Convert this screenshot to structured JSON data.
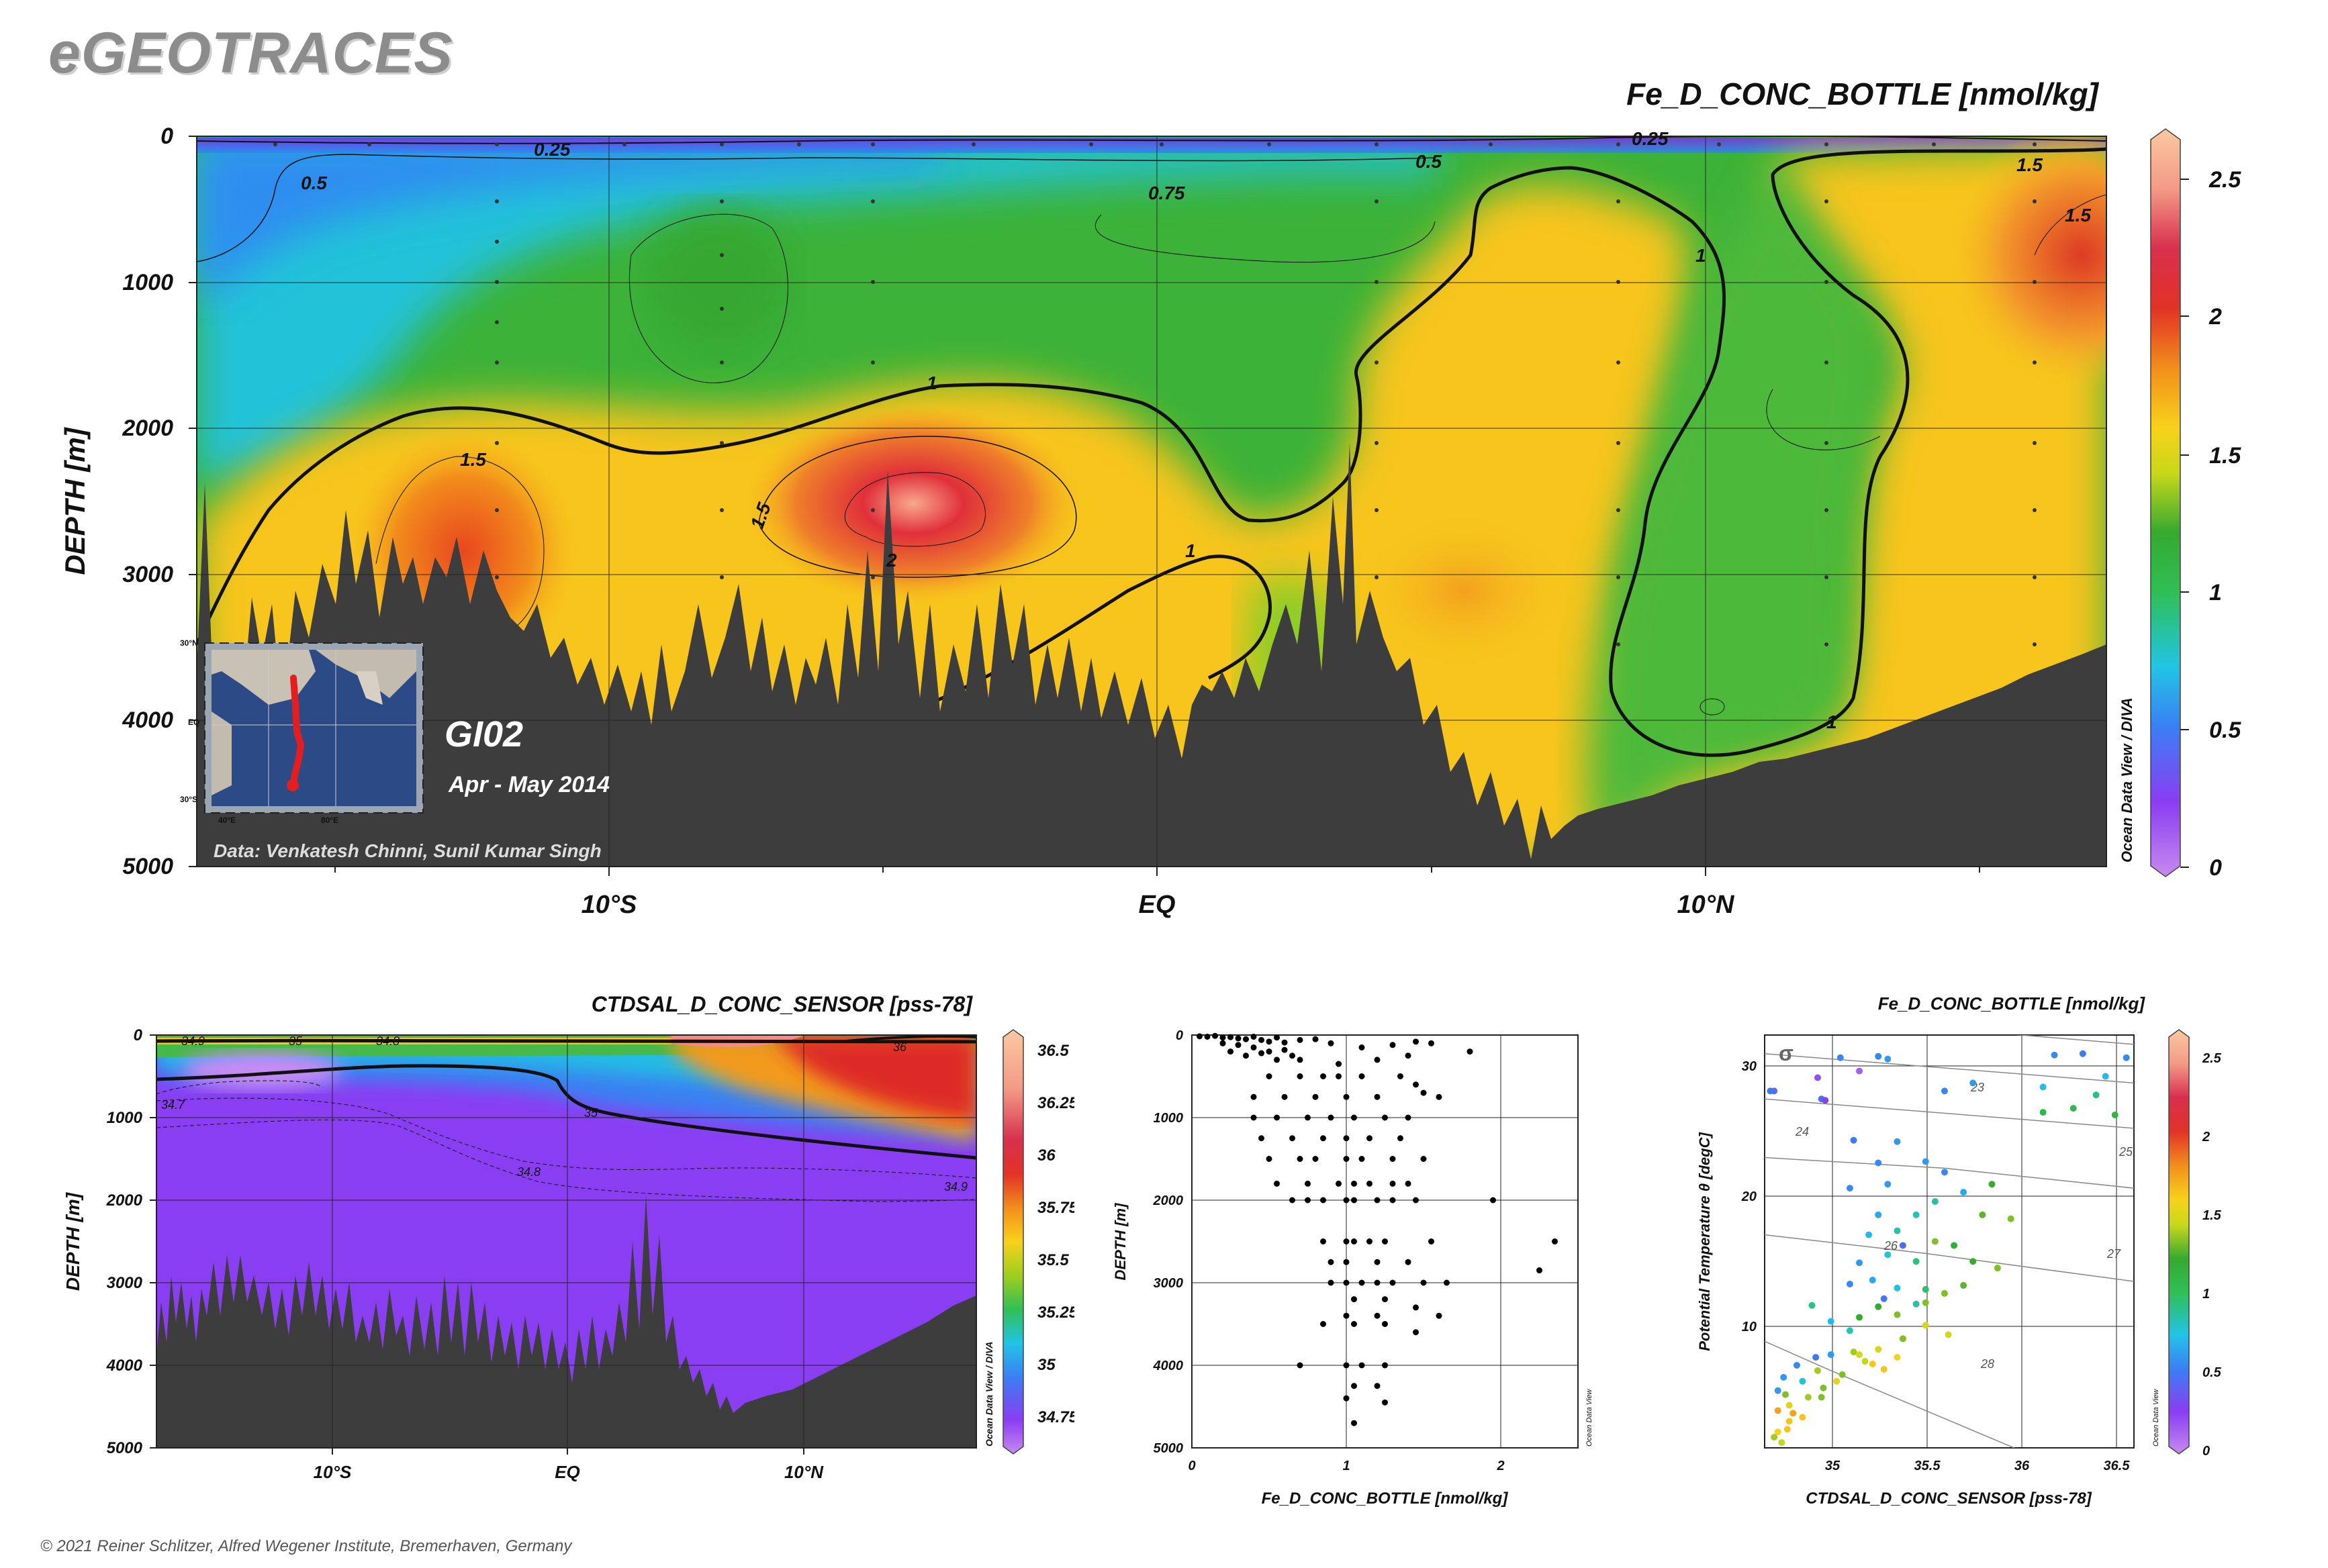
{
  "brand": "eGEOTRACES",
  "copyright": "© 2021 Reiner Schlitzer, Alfred Wegener Institute, Bremerhaven, Germany",
  "main": {
    "title": "Fe_D_CONC_BOTTLE [nmol/kg]",
    "ylabel": "DEPTH [m]",
    "yticks": [
      "0",
      "1000",
      "2000",
      "3000",
      "4000",
      "5000"
    ],
    "xticks": [
      "10°S",
      "EQ",
      "10°N"
    ],
    "section_name": "GI02",
    "section_date": "Apr - May 2014",
    "data_credit": "Data: Venkatesh Chinni, Sunil Kumar Singh",
    "odv_tag": "Ocean Data View / DIVA",
    "contour_labels": [
      "0.25",
      "0.5",
      "0.75",
      "1",
      "1.5",
      "2",
      "0.5",
      "0.25",
      "1.5",
      "1.5",
      "1",
      "1",
      "1",
      "1.5"
    ],
    "colorbar_ticks": [
      "2.5",
      "2",
      "1.5",
      "1",
      "0.5",
      "0"
    ],
    "map_lat_labels": [
      "30°N",
      "EQ",
      "30°S"
    ],
    "map_lon_labels": [
      "40°E",
      "80°E"
    ]
  },
  "sal": {
    "title": "CTDSAL_D_CONC_SENSOR [pss-78]",
    "ylabel": "DEPTH [m]",
    "yticks": [
      "0",
      "1000",
      "2000",
      "3000",
      "4000",
      "5000"
    ],
    "xticks": [
      "10°S",
      "EQ",
      "10°N"
    ],
    "odv_tag": "Ocean Data View / DIVA",
    "contour_labels": [
      "34.9",
      "35",
      "34.7",
      "34.8",
      "36",
      "35",
      "34.8",
      "34.9"
    ],
    "colorbar_ticks": [
      "36.5",
      "36.25",
      "36",
      "35.75",
      "35.5",
      "35.25",
      "35",
      "34.75"
    ]
  },
  "scatter": {
    "ylabel": "DEPTH [m]",
    "xlabel": "Fe_D_CONC_BOTTLE [nmol/kg]",
    "yticks": [
      "0",
      "1000",
      "2000",
      "3000",
      "4000",
      "5000"
    ],
    "xticks": [
      "0",
      "1",
      "2"
    ],
    "odv_tag": "Ocean Data View"
  },
  "ts": {
    "title": "Fe_D_CONC_BOTTLE [nmol/kg]",
    "ylabel": "Potential Temperature θ [degC]",
    "xlabel": "CTDSAL_D_CONC_SENSOR [pss-78]",
    "yticks": [
      "30",
      "20",
      "10"
    ],
    "xticks": [
      "35",
      "35.5",
      "36",
      "36.5"
    ],
    "isopycnal_labels": [
      "23",
      "24",
      "25",
      "26",
      "27",
      "28"
    ],
    "sigma_label": "σ",
    "odv_tag": "Ocean Data View",
    "colorbar_ticks": [
      "2.5",
      "2",
      "1.5",
      "1",
      "0.5",
      "0"
    ]
  },
  "chart_data": [
    {
      "type": "heatmap",
      "title": "Fe_D_CONC_BOTTLE [nmol/kg]",
      "ylabel": "DEPTH [m]",
      "ylim": [
        5000,
        0
      ],
      "x_ticks": [
        "10°S",
        "EQ",
        "10°N"
      ],
      "colorbar_range": [
        0,
        2.6
      ],
      "colorbar_ticks": [
        0,
        0.5,
        1,
        1.5,
        2,
        2.5
      ],
      "contour_levels": [
        0.25,
        0.5,
        0.75,
        1,
        1.5,
        2
      ]
    },
    {
      "type": "heatmap",
      "title": "CTDSAL_D_CONC_SENSOR [pss-78]",
      "ylabel": "DEPTH [m]",
      "ylim": [
        5000,
        0
      ],
      "x_ticks": [
        "10°S",
        "EQ",
        "10°N"
      ],
      "colorbar_range": [
        34.65,
        36.55
      ],
      "colorbar_ticks": [
        34.75,
        35,
        35.25,
        35.5,
        35.75,
        36,
        36.25,
        36.5
      ],
      "contour_levels": [
        34.7,
        34.8,
        34.9,
        35,
        36
      ]
    },
    {
      "type": "scatter",
      "xlabel": "Fe_D_CONC_BOTTLE [nmol/kg]",
      "ylabel": "DEPTH [m]",
      "xlim": [
        0,
        2.5
      ],
      "ylim": [
        5000,
        0
      ],
      "points": [
        [
          0.05,
          15
        ],
        [
          0.1,
          20
        ],
        [
          0.15,
          10
        ],
        [
          0.2,
          30
        ],
        [
          0.25,
          25
        ],
        [
          0.3,
          40
        ],
        [
          0.35,
          50
        ],
        [
          0.4,
          20
        ],
        [
          0.45,
          60
        ],
        [
          0.5,
          80
        ],
        [
          0.55,
          30
        ],
        [
          0.6,
          90
        ],
        [
          0.7,
          60
        ],
        [
          0.8,
          50
        ],
        [
          0.2,
          100
        ],
        [
          0.3,
          120
        ],
        [
          0.4,
          150
        ],
        [
          0.5,
          200
        ],
        [
          0.6,
          180
        ],
        [
          0.35,
          250
        ],
        [
          0.45,
          220
        ],
        [
          0.55,
          300
        ],
        [
          0.25,
          200
        ],
        [
          0.65,
          250
        ],
        [
          0.9,
          100
        ],
        [
          1.1,
          150
        ],
        [
          1.3,
          120
        ],
        [
          1.45,
          80
        ],
        [
          1.55,
          100
        ],
        [
          1.8,
          200
        ],
        [
          0.7,
          300
        ],
        [
          0.95,
          350
        ],
        [
          1.2,
          300
        ],
        [
          1.4,
          250
        ],
        [
          0.5,
          500
        ],
        [
          0.7,
          500
        ],
        [
          0.85,
          500
        ],
        [
          0.95,
          500
        ],
        [
          1.1,
          500
        ],
        [
          1.35,
          500
        ],
        [
          1.45,
          600
        ],
        [
          0.4,
          750
        ],
        [
          0.6,
          750
        ],
        [
          0.8,
          750
        ],
        [
          1.0,
          750
        ],
        [
          1.2,
          750
        ],
        [
          1.5,
          700
        ],
        [
          1.6,
          750
        ],
        [
          0.4,
          1000
        ],
        [
          0.55,
          1000
        ],
        [
          0.75,
          1000
        ],
        [
          0.9,
          1000
        ],
        [
          1.05,
          1000
        ],
        [
          1.25,
          1000
        ],
        [
          1.4,
          1000
        ],
        [
          0.45,
          1250
        ],
        [
          0.65,
          1250
        ],
        [
          0.85,
          1250
        ],
        [
          1.0,
          1250
        ],
        [
          1.15,
          1250
        ],
        [
          1.35,
          1250
        ],
        [
          0.5,
          1500
        ],
        [
          0.7,
          1500
        ],
        [
          0.8,
          1500
        ],
        [
          1.0,
          1500
        ],
        [
          1.1,
          1500
        ],
        [
          1.3,
          1500
        ],
        [
          1.5,
          1500
        ],
        [
          0.55,
          1800
        ],
        [
          0.75,
          1800
        ],
        [
          0.95,
          1800
        ],
        [
          1.05,
          1800
        ],
        [
          1.15,
          1800
        ],
        [
          1.3,
          1800
        ],
        [
          1.4,
          1800
        ],
        [
          0.65,
          2000
        ],
        [
          0.75,
          2000
        ],
        [
          0.85,
          2000
        ],
        [
          1.0,
          2000
        ],
        [
          1.05,
          2000
        ],
        [
          1.2,
          2000
        ],
        [
          1.3,
          2000
        ],
        [
          1.45,
          2000
        ],
        [
          1.95,
          2000
        ],
        [
          0.85,
          2500
        ],
        [
          1.0,
          2500
        ],
        [
          1.05,
          2500
        ],
        [
          1.15,
          2500
        ],
        [
          1.25,
          2500
        ],
        [
          1.55,
          2500
        ],
        [
          2.35,
          2500
        ],
        [
          0.9,
          2750
        ],
        [
          1.0,
          2750
        ],
        [
          1.2,
          2750
        ],
        [
          1.4,
          2750
        ],
        [
          2.25,
          2850
        ],
        [
          0.9,
          3000
        ],
        [
          1.0,
          3000
        ],
        [
          1.1,
          3000
        ],
        [
          1.2,
          3000
        ],
        [
          1.3,
          3000
        ],
        [
          1.5,
          3000
        ],
        [
          1.65,
          3000
        ],
        [
          1.05,
          3200
        ],
        [
          1.25,
          3200
        ],
        [
          1.45,
          3300
        ],
        [
          1.0,
          3400
        ],
        [
          1.2,
          3400
        ],
        [
          1.6,
          3400
        ],
        [
          0.85,
          3500
        ],
        [
          1.05,
          3500
        ],
        [
          1.25,
          3500
        ],
        [
          1.45,
          3600
        ],
        [
          0.7,
          4000
        ],
        [
          1.0,
          4000
        ],
        [
          1.1,
          4000
        ],
        [
          1.25,
          4000
        ],
        [
          1.05,
          4250
        ],
        [
          1.2,
          4250
        ],
        [
          1.0,
          4400
        ],
        [
          1.25,
          4450
        ],
        [
          1.05,
          4700
        ]
      ]
    },
    {
      "type": "scatter",
      "title": "Fe_D_CONC_BOTTLE [nmol/kg]",
      "xlabel": "CTDSAL_D_CONC_SENSOR [pss-78]",
      "ylabel": "Potential Temperature θ [degC]",
      "xlim": [
        34.65,
        36.6
      ],
      "ylim": [
        1,
        32
      ],
      "color_range": [
        0,
        2.6
      ],
      "isopycnals": [
        {
          "label": "23",
          "p": [
            [
              34.65,
              33.6
            ],
            [
              36.6,
              31.3
            ]
          ]
        },
        {
          "label": "24",
          "p": [
            [
              34.65,
              30.6
            ],
            [
              36.6,
              28.4
            ]
          ]
        },
        {
          "label": "25",
          "p": [
            [
              34.65,
              27.2
            ],
            [
              36.6,
              25.0
            ]
          ]
        },
        {
          "label": "26",
          "p": [
            [
              34.65,
              22.8
            ],
            [
              35.6,
              22.0
            ],
            [
              36.6,
              20.5
            ]
          ]
        },
        {
          "label": "27",
          "p": [
            [
              34.65,
              17.0
            ],
            [
              35.5,
              15.6
            ],
            [
              36.6,
              13.5
            ]
          ]
        },
        {
          "label": "28",
          "p": [
            [
              34.65,
              9.0
            ],
            [
              35.0,
              6.8
            ],
            [
              35.5,
              3.8
            ],
            [
              36.0,
              0.8
            ]
          ]
        }
      ],
      "points": [
        [
          34.68,
          27.8,
          0.5
        ],
        [
          34.7,
          27.8,
          0.45
        ],
        [
          34.93,
          28.8,
          0.2
        ],
        [
          34.95,
          27.2,
          0.45
        ],
        [
          34.97,
          27.1,
          0.3
        ],
        [
          35.05,
          30.3,
          0.55
        ],
        [
          35.25,
          30.4,
          0.55
        ],
        [
          35.15,
          29.3,
          0.15
        ],
        [
          35.3,
          30.2,
          0.6
        ],
        [
          35.6,
          27.8,
          0.55
        ],
        [
          35.75,
          28.4,
          0.6
        ],
        [
          36.12,
          28.1,
          0.7
        ],
        [
          36.18,
          30.5,
          0.55
        ],
        [
          36.33,
          30.6,
          0.5
        ],
        [
          36.56,
          30.3,
          0.55
        ],
        [
          36.45,
          28.9,
          0.7
        ],
        [
          36.4,
          27.5,
          0.9
        ],
        [
          36.28,
          26.5,
          1.05
        ],
        [
          36.12,
          26.2,
          1.05
        ],
        [
          36.5,
          26.0,
          1.1
        ],
        [
          35.12,
          24.1,
          0.5
        ],
        [
          35.25,
          22.4,
          0.55
        ],
        [
          35.35,
          24.0,
          0.6
        ],
        [
          35.1,
          20.5,
          0.55
        ],
        [
          35.3,
          20.8,
          0.6
        ],
        [
          35.5,
          22.5,
          0.6
        ],
        [
          35.6,
          21.7,
          0.55
        ],
        [
          35.7,
          20.2,
          0.65
        ],
        [
          35.45,
          18.5,
          0.8
        ],
        [
          35.35,
          17.3,
          0.85
        ],
        [
          35.25,
          18.5,
          0.65
        ],
        [
          35.2,
          17.0,
          0.7
        ],
        [
          35.3,
          15.5,
          0.75
        ],
        [
          35.45,
          15.0,
          0.9
        ],
        [
          35.15,
          14.9,
          0.6
        ],
        [
          35.22,
          13.6,
          0.65
        ],
        [
          35.1,
          13.3,
          0.55
        ],
        [
          35.35,
          13.0,
          0.75
        ],
        [
          35.5,
          12.9,
          0.95
        ],
        [
          35.55,
          19.5,
          0.85
        ],
        [
          35.38,
          16.2,
          0.45
        ],
        [
          35.28,
          12.2,
          0.5
        ],
        [
          35.45,
          11.8,
          0.85
        ],
        [
          35.85,
          20.8,
          1.2
        ],
        [
          35.8,
          18.5,
          1.25
        ],
        [
          35.95,
          18.2,
          1.3
        ],
        [
          35.55,
          16.5,
          1.3
        ],
        [
          35.65,
          16.2,
          1.15
        ],
        [
          35.75,
          15.0,
          1.2
        ],
        [
          35.88,
          14.5,
          1.3
        ],
        [
          35.6,
          12.6,
          1.3
        ],
        [
          35.7,
          13.2,
          1.25
        ],
        [
          35.5,
          11.9,
          1.3
        ],
        [
          35.35,
          11.0,
          1.3
        ],
        [
          35.25,
          11.6,
          1.2
        ],
        [
          35.15,
          10.8,
          1.2
        ],
        [
          35.1,
          9.8,
          0.8
        ],
        [
          35.0,
          10.5,
          0.7
        ],
        [
          34.9,
          11.7,
          0.9
        ],
        [
          35.0,
          8.0,
          0.6
        ],
        [
          34.92,
          7.8,
          0.5
        ],
        [
          34.82,
          7.2,
          0.55
        ],
        [
          34.75,
          6.3,
          0.6
        ],
        [
          34.72,
          5.3,
          0.6
        ],
        [
          34.85,
          6.0,
          0.75
        ],
        [
          34.96,
          5.5,
          1.3
        ],
        [
          35.06,
          6.5,
          1.3
        ],
        [
          35.18,
          7.5,
          1.4
        ],
        [
          35.25,
          8.4,
          1.45
        ],
        [
          35.38,
          9.2,
          1.3
        ],
        [
          35.5,
          10.2,
          1.45
        ],
        [
          35.62,
          9.5,
          1.45
        ],
        [
          35.12,
          8.2,
          1.35
        ],
        [
          34.78,
          4.2,
          1.5
        ],
        [
          34.8,
          3.6,
          1.7
        ],
        [
          34.78,
          3.0,
          1.6
        ],
        [
          34.77,
          2.4,
          1.6
        ],
        [
          34.72,
          2.2,
          1.55
        ],
        [
          34.7,
          1.8,
          1.35
        ],
        [
          34.74,
          1.4,
          1.4
        ],
        [
          34.72,
          3.8,
          1.7
        ],
        [
          34.76,
          5.0,
          1.3
        ],
        [
          34.88,
          4.8,
          1.35
        ],
        [
          34.85,
          3.3,
          1.6
        ],
        [
          34.95,
          4.8,
          1.3
        ],
        [
          35.03,
          6.0,
          1.5
        ],
        [
          34.93,
          6.8,
          1.35
        ],
        [
          35.28,
          6.9,
          1.6
        ],
        [
          35.22,
          7.3,
          1.6
        ],
        [
          35.15,
          8.0,
          1.45
        ],
        [
          35.35,
          7.8,
          1.55
        ]
      ]
    }
  ]
}
